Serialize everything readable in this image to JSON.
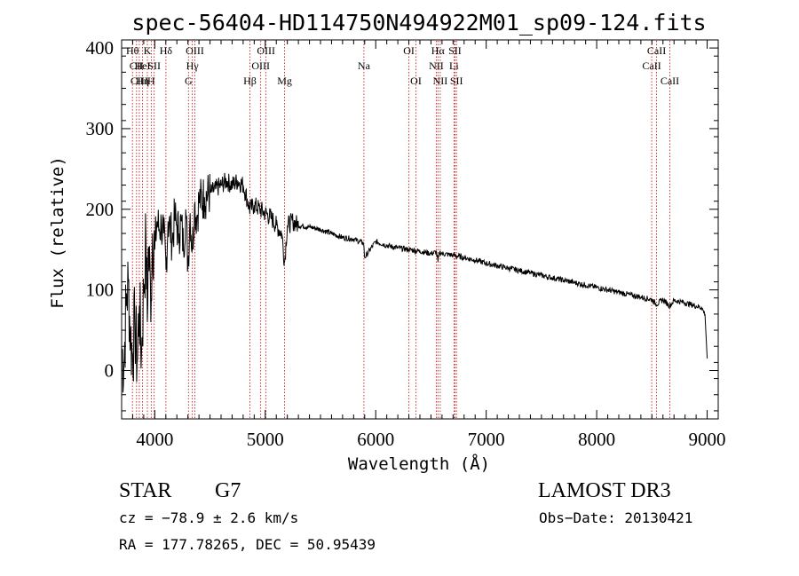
{
  "chart_data": {
    "type": "line",
    "title": "spec-56404-HD114750N494922M01_sp09-124.fits",
    "xlabel": "Wavelength (Å)",
    "ylabel": "Flux (relative)",
    "xlim": [
      3700,
      9100
    ],
    "ylim": [
      -60,
      410
    ],
    "xticks": [
      4000,
      5000,
      6000,
      7000,
      8000,
      9000
    ],
    "yticks": [
      0,
      100,
      200,
      300,
      400
    ],
    "grid": false,
    "series": [
      {
        "name": "flux",
        "x": [
          3700,
          3720,
          3740,
          3760,
          3780,
          3800,
          3820,
          3840,
          3860,
          3880,
          3900,
          3920,
          3933,
          3940,
          3960,
          3968,
          3980,
          4000,
          4020,
          4040,
          4060,
          4080,
          4101,
          4120,
          4140,
          4160,
          4180,
          4200,
          4220,
          4240,
          4260,
          4280,
          4300,
          4320,
          4340,
          4360,
          4380,
          4400,
          4450,
          4500,
          4550,
          4600,
          4650,
          4700,
          4750,
          4800,
          4861,
          4900,
          4950,
          5000,
          5050,
          5100,
          5150,
          5175,
          5200,
          5250,
          5300,
          5400,
          5500,
          5600,
          5700,
          5800,
          5890,
          5900,
          6000,
          6100,
          6200,
          6300,
          6400,
          6500,
          6550,
          6563,
          6580,
          6600,
          6700,
          6800,
          6900,
          7000,
          7100,
          7200,
          7300,
          7400,
          7500,
          7600,
          7700,
          7800,
          7900,
          8000,
          8100,
          8200,
          8300,
          8400,
          8500,
          8542,
          8600,
          8662,
          8700,
          8800,
          8850,
          8900,
          8950,
          8980,
          9000
        ],
        "values": [
          30,
          5,
          80,
          110,
          40,
          20,
          60,
          10,
          80,
          20,
          100,
          160,
          60,
          150,
          110,
          90,
          170,
          150,
          185,
          175,
          180,
          170,
          125,
          185,
          175,
          160,
          190,
          180,
          170,
          185,
          150,
          200,
          130,
          195,
          150,
          205,
          190,
          210,
          215,
          220,
          225,
          230,
          235,
          230,
          235,
          230,
          200,
          205,
          200,
          195,
          190,
          180,
          170,
          135,
          180,
          185,
          180,
          178,
          175,
          170,
          165,
          163,
          158,
          140,
          160,
          155,
          152,
          150,
          148,
          145,
          147,
          135,
          147,
          145,
          143,
          140,
          137,
          133,
          130,
          127,
          124,
          121,
          118,
          115,
          112,
          109,
          106,
          103,
          100,
          97,
          94,
          91,
          88,
          82,
          88,
          80,
          87,
          84,
          82,
          80,
          78,
          70,
          15
        ]
      }
    ],
    "lines": [
      {
        "label": "Hθ",
        "wave": 3798,
        "row": 0
      },
      {
        "label": "CII",
        "wave": 3835,
        "row": 1
      },
      {
        "label": "CIII",
        "wave": 3860,
        "row": 2
      },
      {
        "label": "Hη",
        "wave": 3889,
        "row": 2
      },
      {
        "label": "HeI",
        "wave": 3889,
        "row": 1
      },
      {
        "label": "K",
        "wave": 3933,
        "row": 0
      },
      {
        "label": "H",
        "wave": 3968,
        "row": 2
      },
      {
        "label": "SII",
        "wave": 3995,
        "row": 1
      },
      {
        "label": "Hδ",
        "wave": 4101,
        "row": 0
      },
      {
        "label": "OIII",
        "wave": 4363,
        "row": 0
      },
      {
        "label": "Hγ",
        "wave": 4340,
        "row": 1
      },
      {
        "label": "G",
        "wave": 4305,
        "row": 2
      },
      {
        "label": "Hβ",
        "wave": 4861,
        "row": 2
      },
      {
        "label": "OIII",
        "wave": 5007,
        "row": 0
      },
      {
        "label": "OIII",
        "wave": 4959,
        "row": 1
      },
      {
        "label": "Mg",
        "wave": 5175,
        "row": 2
      },
      {
        "label": "Na",
        "wave": 5893,
        "row": 1
      },
      {
        "label": "OI",
        "wave": 6300,
        "row": 0
      },
      {
        "label": "OI",
        "wave": 6364,
        "row": 2
      },
      {
        "label": "Hα",
        "wave": 6563,
        "row": 0
      },
      {
        "label": "NII",
        "wave": 6548,
        "row": 1
      },
      {
        "label": "NII",
        "wave": 6584,
        "row": 2
      },
      {
        "label": "SII",
        "wave": 6717,
        "row": 0
      },
      {
        "label": "Li",
        "wave": 6708,
        "row": 1
      },
      {
        "label": "SII",
        "wave": 6731,
        "row": 2
      },
      {
        "label": "CaII",
        "wave": 8542,
        "row": 0
      },
      {
        "label": "CaII",
        "wave": 8498,
        "row": 1
      },
      {
        "label": "CaII",
        "wave": 8662,
        "row": 2
      }
    ]
  },
  "info": {
    "class": "STAR",
    "subclass": "G7",
    "survey": "LAMOST DR3",
    "cz": "cz = −78.9 ± 2.6 km/s",
    "obsdate": "Obs−Date: 20130421",
    "radec": "RA = 177.78265, DEC =  50.95439"
  },
  "colors": {
    "line_marker": "#cc0000",
    "spectrum": "#000000"
  }
}
